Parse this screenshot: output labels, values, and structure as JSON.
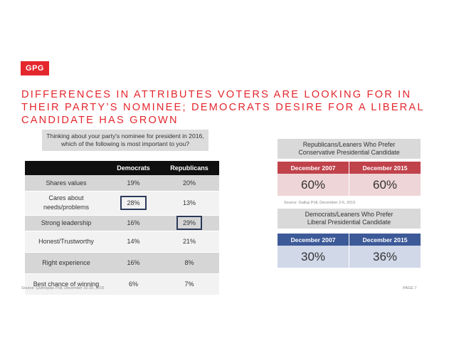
{
  "logo": "GPG",
  "headline": [
    "DIFFERENCES IN ATTRIBUTES VOTERS ARE LOOKING FOR IN",
    "THEIR PARTY’S NOMINEE; DEMOCRATS DESIRE FOR A LIBERAL",
    "CANDIDATE HAS GROWN"
  ],
  "question": "Thinking about your party's nominee for president in 2016, which of the following is most important to you?",
  "chart_data": [
    {
      "type": "table",
      "title": "Thinking about your party's nominee for president in 2016, which of the following is most important to you?",
      "columns": [
        "",
        "Democrats",
        "Republicans"
      ],
      "rows": [
        {
          "label": "Shares values",
          "democrats": "19%",
          "republicans": "20%",
          "highlight": ""
        },
        {
          "label": "Cares about needs/problems",
          "democrats": "28%",
          "republicans": "13%",
          "highlight": "democrats"
        },
        {
          "label": "Strong leadership",
          "democrats": "16%",
          "republicans": "29%",
          "highlight": "republicans"
        },
        {
          "label": "Honest/Trustworthy",
          "democrats": "14%",
          "republicans": "21%",
          "highlight": ""
        },
        {
          "label": "Right experience",
          "democrats": "16%",
          "republicans": "8%",
          "highlight": ""
        },
        {
          "label": "Best chance of winning",
          "democrats": "6%",
          "republicans": "7%",
          "highlight": ""
        }
      ],
      "source": "Source: Quinnipiac Poll, December 16-20, 2015"
    },
    {
      "type": "table",
      "title": "Republicans/Leaners Who Prefer Conservative Presidential Candidate",
      "columns": [
        "December 2007",
        "December 2015"
      ],
      "values": [
        "60%",
        "60%"
      ],
      "color": "#c0424b"
    },
    {
      "type": "table",
      "title": "Democrats/Leaners Who Prefer Liberal Presidential Candidate",
      "columns": [
        "December 2007",
        "December 2015"
      ],
      "values": [
        "30%",
        "36%"
      ],
      "color": "#3d5a98",
      "source": "Source: Gallup Poll, December 2-6, 2015"
    }
  ],
  "rep_box": {
    "title_line1": "Republicans/Leaners Who Prefer",
    "title_line2": "Conservative Presidential Candidate",
    "col1": "December 2007",
    "col2": "December 2015",
    "val1": "60%",
    "val2": "60%"
  },
  "dem_box": {
    "title_line1": "Democrats/Leaners Who Prefer",
    "title_line2": "Liberal Presidential Candidate",
    "col1": "December 2007",
    "col2": "December 2015",
    "val1": "30%",
    "val2": "36%"
  },
  "gallup_source": "Source: Gallup Poll, December 2-6, 2015",
  "quinnipiac_source": "Source: Quinnipiac Poll, December 16-20, 2015",
  "page_label": "PAGE 7",
  "colors": {
    "accent": "#e3272d",
    "republican": "#c0424b",
    "democrat": "#3d5a98"
  }
}
